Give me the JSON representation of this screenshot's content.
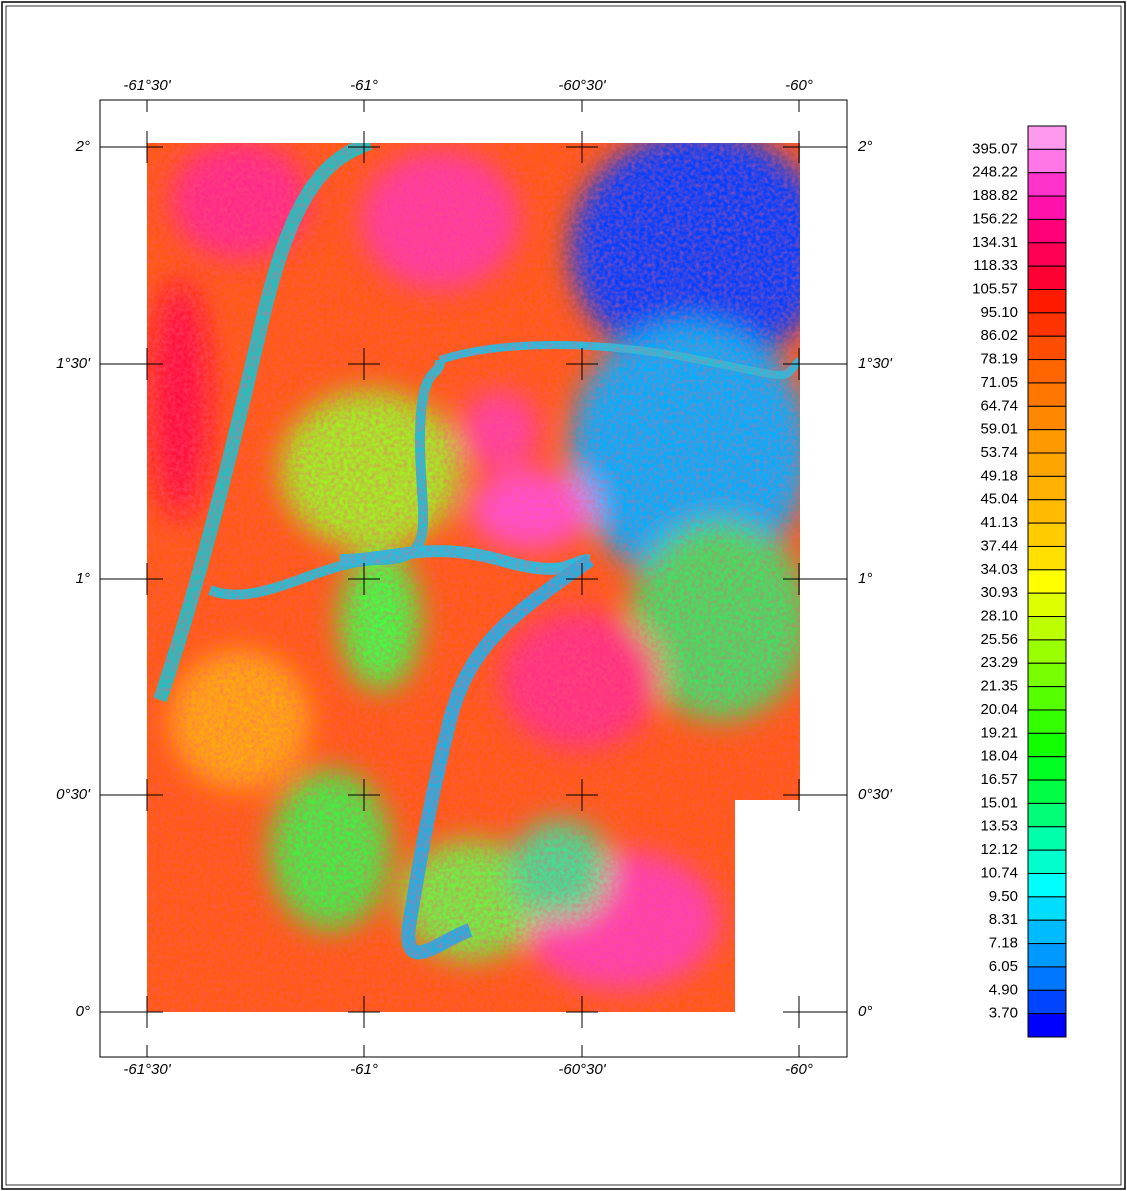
{
  "map": {
    "x_labels": [
      "-61°30'",
      "-61°",
      "-60°30'",
      "-60°"
    ],
    "y_labels": [
      "2°",
      "1°30'",
      "1°",
      "0°30'",
      "0°"
    ]
  },
  "legend": {
    "labels": [
      "395.07",
      "248.22",
      "188.82",
      "156.22",
      "134.31",
      "118.33",
      "105.57",
      "95.10",
      "86.02",
      "78.19",
      "71.05",
      "64.74",
      "59.01",
      "53.74",
      "49.18",
      "45.04",
      "41.13",
      "37.44",
      "34.03",
      "30.93",
      "28.10",
      "25.56",
      "23.29",
      "21.35",
      "20.04",
      "19.21",
      "18.04",
      "16.57",
      "15.01",
      "13.53",
      "12.12",
      "10.74",
      "9.50",
      "8.31",
      "7.18",
      "6.05",
      "4.90",
      "3.70"
    ],
    "colors": [
      "#ff99ee",
      "#ff77e6",
      "#ff33cc",
      "#ff11aa",
      "#ff0077",
      "#ff0055",
      "#ff0033",
      "#ff1a00",
      "#ff3300",
      "#ff4d00",
      "#ff6600",
      "#ff7700",
      "#ff8800",
      "#ff9900",
      "#ffa500",
      "#ffb000",
      "#ffbb00",
      "#ffcc00",
      "#ffe000",
      "#ffff00",
      "#ddff00",
      "#bbff00",
      "#99ff00",
      "#77ff00",
      "#55ff00",
      "#33ff00",
      "#11ff00",
      "#00ff22",
      "#00ff44",
      "#00ff77",
      "#00ffaa",
      "#00ffcc",
      "#00ffff",
      "#00ddff",
      "#00bbff",
      "#0099ff",
      "#0077ff",
      "#0044ff",
      "#0000ff"
    ]
  }
}
